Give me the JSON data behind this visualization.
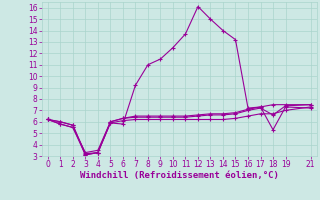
{
  "xlabel": "Windchill (Refroidissement éolien,°C)",
  "background_color": "#cde8e4",
  "line_color": "#990099",
  "xlim": [
    -0.5,
    21.5
  ],
  "ylim": [
    3,
    16.5
  ],
  "xticks": [
    0,
    1,
    2,
    3,
    4,
    5,
    6,
    7,
    8,
    9,
    10,
    11,
    12,
    13,
    14,
    15,
    16,
    17,
    18,
    19,
    21
  ],
  "yticks": [
    3,
    4,
    5,
    6,
    7,
    8,
    9,
    10,
    11,
    12,
    13,
    14,
    15,
    16
  ],
  "x": [
    0,
    1,
    2,
    3,
    4,
    5,
    6,
    7,
    8,
    9,
    10,
    11,
    12,
    13,
    14,
    15,
    16,
    17,
    18,
    19,
    21
  ],
  "series": [
    [
      6.2,
      6.0,
      5.7,
      3.1,
      3.3,
      5.9,
      5.8,
      9.2,
      11.0,
      11.5,
      12.5,
      13.7,
      16.1,
      15.0,
      14.0,
      13.2,
      7.2,
      7.3,
      5.3,
      7.3,
      7.2
    ],
    [
      6.2,
      5.8,
      5.5,
      3.1,
      3.3,
      6.0,
      6.3,
      6.4,
      6.4,
      6.4,
      6.4,
      6.4,
      6.5,
      6.6,
      6.6,
      6.7,
      7.0,
      7.2,
      6.6,
      7.4,
      7.5
    ],
    [
      6.2,
      5.8,
      5.5,
      3.3,
      3.5,
      6.0,
      6.3,
      6.5,
      6.5,
      6.5,
      6.5,
      6.5,
      6.6,
      6.7,
      6.7,
      6.8,
      7.1,
      7.3,
      7.5,
      7.5,
      7.5
    ],
    [
      6.2,
      6.0,
      5.7,
      3.2,
      3.3,
      5.9,
      6.1,
      6.2,
      6.2,
      6.2,
      6.2,
      6.2,
      6.2,
      6.2,
      6.2,
      6.3,
      6.5,
      6.7,
      6.7,
      7.0,
      7.3
    ]
  ],
  "marker": "+",
  "markersize": 3,
  "linewidth": 0.8,
  "grid_color": "#aad4cc",
  "tick_fontsize": 5.5,
  "label_fontsize": 6.5
}
